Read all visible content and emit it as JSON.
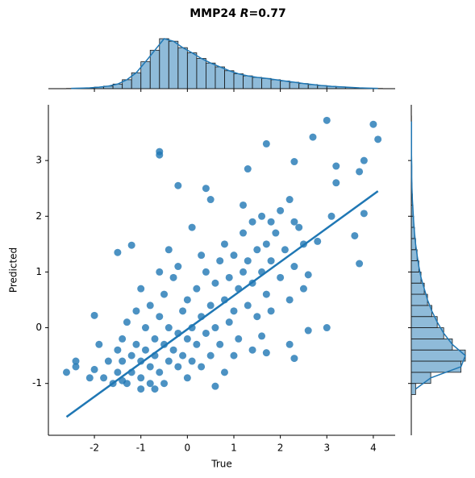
{
  "chart_data": {
    "type": "scatter",
    "title": [
      "MMP24 ",
      "R",
      "=0.77"
    ],
    "xlabel": "True",
    "ylabel": "Predicted",
    "xlim": [
      -2.99,
      4.47
    ],
    "ylim": [
      -1.93,
      4.0
    ],
    "xticks": [
      -2,
      -1,
      0,
      1,
      2,
      3,
      4
    ],
    "yticks": [
      -1,
      0,
      1,
      2,
      3
    ],
    "color": "#1f77b4",
    "x": [
      -2.6,
      -2.4,
      -2.4,
      -2.0,
      -2.0,
      -1.5,
      -1.2,
      -0.6,
      -0.6,
      1.7,
      3.0,
      4.0,
      4.1,
      3.8,
      2.7,
      3.7,
      3.8,
      3.6,
      3.7,
      3.0,
      2.6,
      2.3,
      1.7,
      -0.2,
      0.4,
      0.5,
      1.3,
      2.3,
      2.2,
      2.5,
      2.6,
      2.8,
      3.1,
      3.2,
      3.2,
      2.3,
      1.8,
      1.2,
      0.1,
      -0.4,
      0.6,
      1.6,
      2.2,
      1.0,
      -1.0,
      -0.7,
      -1.4,
      -1.8,
      -1.7,
      -1.6,
      -1.5,
      -1.5,
      -1.4,
      -1.4,
      -1.3,
      -1.3,
      -1.2,
      -1.2,
      -1.1,
      -1.1,
      -1.0,
      -1.0,
      -0.9,
      -0.9,
      -0.8,
      -0.8,
      -0.8,
      -0.7,
      -0.7,
      -0.6,
      -0.6,
      -0.5,
      -0.5,
      -0.5,
      -0.4,
      -0.4,
      -0.3,
      -0.3,
      -0.2,
      -0.2,
      -0.1,
      -0.1,
      0.0,
      0.0,
      0.0,
      0.1,
      0.1,
      0.2,
      0.2,
      0.3,
      0.3,
      0.4,
      0.4,
      0.5,
      0.5,
      0.6,
      0.6,
      0.7,
      0.7,
      0.8,
      0.8,
      0.9,
      0.9,
      1.0,
      1.0,
      1.1,
      1.1,
      1.2,
      1.2,
      1.3,
      1.3,
      1.4,
      1.4,
      1.5,
      1.5,
      1.6,
      1.6,
      1.7,
      1.7,
      1.8,
      1.8,
      1.9,
      2.0,
      2.0,
      2.1,
      2.2,
      2.3,
      2.4,
      2.5,
      -1.0,
      -0.6,
      0.3,
      -0.2,
      0.8,
      1.4,
      -1.9,
      -2.1
    ],
    "y": [
      -0.8,
      -0.6,
      -0.7,
      -0.75,
      0.22,
      1.35,
      1.48,
      3.1,
      3.16,
      3.3,
      3.72,
      3.65,
      3.38,
      3.0,
      3.42,
      2.8,
      2.05,
      1.65,
      1.15,
      0.0,
      -0.05,
      -0.55,
      -0.45,
      2.55,
      2.5,
      2.3,
      2.85,
      2.98,
      2.3,
      1.5,
      0.95,
      1.55,
      2.0,
      2.6,
      2.9,
      1.9,
      1.9,
      2.2,
      1.8,
      1.4,
      -1.05,
      -0.15,
      -0.3,
      -0.5,
      -1.1,
      -1.1,
      -0.95,
      -0.9,
      -0.6,
      -1.0,
      -0.4,
      -0.8,
      -0.2,
      -0.6,
      -1.0,
      0.1,
      -0.5,
      -0.8,
      -0.3,
      0.3,
      -0.6,
      -0.9,
      0.0,
      -0.4,
      -0.7,
      0.4,
      -1.0,
      -0.2,
      -0.5,
      0.2,
      -0.8,
      -0.3,
      0.6,
      -1.0,
      -0.6,
      0.0,
      -0.4,
      0.9,
      -0.1,
      -0.7,
      0.3,
      -0.5,
      -0.2,
      0.5,
      -0.9,
      0.0,
      -0.6,
      0.7,
      -0.3,
      0.2,
      -0.7,
      1.0,
      -0.1,
      0.4,
      -0.5,
      0.8,
      0.0,
      1.2,
      -0.3,
      0.5,
      1.5,
      0.1,
      0.9,
      1.3,
      0.3,
      0.7,
      -0.2,
      1.0,
      1.7,
      0.4,
      1.2,
      0.8,
      1.9,
      0.2,
      1.4,
      1.0,
      2.0,
      0.6,
      1.5,
      1.2,
      0.3,
      1.7,
      0.9,
      2.1,
      1.4,
      0.5,
      1.1,
      1.8,
      0.7,
      0.7,
      1.0,
      1.3,
      1.1,
      -0.8,
      -0.4,
      -0.3,
      -0.9
    ],
    "regression": {
      "x": [
        -2.6,
        4.1
      ],
      "y": [
        -1.6,
        2.45
      ]
    },
    "x_hist": {
      "bins": [
        -2.6,
        -2.4,
        -2.2,
        -2.0,
        -1.8,
        -1.6,
        -1.4,
        -1.2,
        -1.0,
        -0.8,
        -0.6,
        -0.4,
        -0.2,
        0.0,
        0.2,
        0.4,
        0.6,
        0.8,
        1.0,
        1.2,
        1.4,
        1.6,
        1.8,
        2.0,
        2.2,
        2.4,
        2.6,
        2.8,
        3.0,
        3.2,
        3.4,
        3.6,
        3.8,
        4.0,
        4.2
      ],
      "counts": [
        1,
        2,
        3,
        6,
        10,
        18,
        35,
        62,
        105,
        150,
        195,
        185,
        160,
        140,
        118,
        100,
        85,
        70,
        58,
        50,
        44,
        40,
        35,
        30,
        25,
        20,
        16,
        12,
        9,
        7,
        5,
        3,
        2,
        1
      ]
    },
    "y_hist": {
      "bins": [
        -1.2,
        -1.0,
        -0.8,
        -0.6,
        -0.4,
        -0.2,
        0.0,
        0.2,
        0.4,
        0.6,
        0.8,
        1.0,
        1.2,
        1.4,
        1.6,
        1.8,
        2.0,
        2.2,
        2.4,
        2.6,
        2.8,
        3.0,
        3.2,
        3.4,
        3.6,
        3.8
      ],
      "counts": [
        20,
        90,
        230,
        250,
        190,
        150,
        120,
        95,
        75,
        60,
        45,
        35,
        27,
        20,
        15,
        11,
        8,
        5,
        3,
        2,
        2,
        1,
        1,
        1,
        1
      ]
    }
  }
}
